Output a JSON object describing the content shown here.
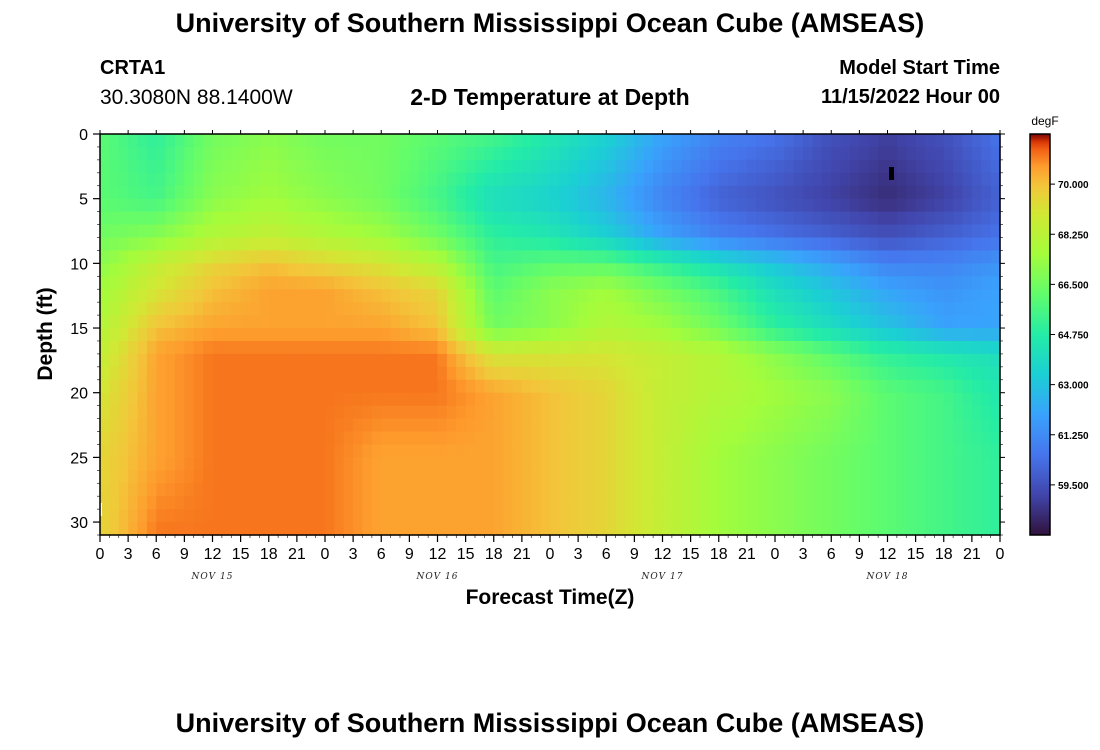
{
  "header": {
    "title": "University of Southern Mississippi Ocean Cube (AMSEAS)",
    "station_id": "CRTA1",
    "coordinates": "30.3080N  88.1400W",
    "subtitle": "2-D Temperature at Depth",
    "model_start_label": "Model Start Time",
    "model_start_time": "11/15/2022 Hour 00"
  },
  "footer": {
    "title": "University of Southern Mississippi Ocean Cube (AMSEAS)"
  },
  "chart_data": {
    "type": "heatmap",
    "title": "2-D Temperature at Depth",
    "xlabel": "Forecast Time(Z)",
    "ylabel": "Depth (ft)",
    "x_hours_range": [
      0,
      96
    ],
    "x_tick_labels": [
      "0",
      "3",
      "6",
      "9",
      "12",
      "15",
      "18",
      "21",
      "0",
      "3",
      "6",
      "9",
      "12",
      "15",
      "18",
      "21",
      "0",
      "3",
      "6",
      "9",
      "12",
      "15",
      "18",
      "21",
      "0",
      "3",
      "6",
      "9",
      "12",
      "15",
      "18",
      "21",
      "0"
    ],
    "day_labels": [
      "NOV 15",
      "NOV 16",
      "NOV 17",
      "NOV 18"
    ],
    "y_range": [
      0,
      31
    ],
    "y_ticks": [
      0,
      5,
      10,
      15,
      20,
      25,
      30
    ],
    "y_reversed": true,
    "colorbar": {
      "unit": "degF",
      "range": [
        57.75,
        71.75
      ],
      "tick_values": [
        70.0,
        68.25,
        66.5,
        64.75,
        63.0,
        61.25,
        59.5
      ],
      "tick_labels": [
        "70.000",
        "68.250",
        "66.500",
        "64.750",
        "63.000",
        "61.250",
        "59.500"
      ]
    },
    "layers": {
      "depth_ft": [
        0,
        5,
        8,
        10,
        12,
        15,
        17,
        20,
        25,
        31
      ],
      "hours": [
        0,
        6,
        12,
        18,
        24,
        30,
        36,
        42,
        48,
        54,
        60,
        66,
        72,
        78,
        84,
        90,
        96
      ],
      "temperature_degF": [
        [
          66.0,
          65.0,
          66.5,
          67.0,
          66.5,
          66.5,
          66.0,
          65.5,
          64.5,
          63.5,
          62.0,
          61.0,
          60.5,
          59.5,
          59.0,
          59.5,
          60.5
        ],
        [
          66.0,
          65.5,
          67.0,
          67.5,
          67.0,
          66.5,
          65.5,
          64.0,
          63.5,
          62.5,
          61.0,
          60.0,
          59.5,
          59.0,
          58.5,
          59.0,
          60.0
        ],
        [
          66.5,
          67.0,
          68.0,
          68.5,
          68.0,
          67.5,
          66.5,
          65.0,
          64.5,
          63.5,
          62.0,
          61.0,
          60.5,
          60.0,
          59.5,
          60.0,
          60.5
        ],
        [
          67.0,
          68.5,
          69.5,
          70.0,
          69.5,
          69.0,
          68.0,
          65.5,
          66.0,
          66.0,
          65.0,
          64.0,
          63.0,
          62.0,
          61.0,
          61.0,
          61.5
        ],
        [
          67.5,
          69.0,
          70.0,
          70.5,
          70.5,
          70.0,
          69.5,
          66.0,
          67.0,
          67.5,
          66.5,
          65.5,
          64.0,
          63.0,
          62.0,
          61.5,
          62.0
        ],
        [
          68.0,
          70.0,
          70.5,
          70.5,
          70.5,
          70.5,
          70.0,
          66.5,
          67.0,
          68.0,
          67.5,
          66.5,
          65.0,
          64.0,
          63.0,
          62.0,
          62.0
        ],
        [
          68.5,
          70.5,
          71.0,
          71.0,
          71.0,
          71.0,
          71.0,
          69.0,
          69.0,
          69.0,
          68.5,
          68.0,
          67.0,
          66.0,
          65.0,
          64.5,
          64.0
        ],
        [
          69.0,
          70.5,
          71.0,
          71.0,
          71.0,
          71.0,
          71.0,
          70.5,
          70.0,
          69.5,
          68.5,
          68.0,
          67.5,
          67.0,
          66.0,
          65.5,
          64.5
        ],
        [
          69.5,
          70.5,
          71.0,
          71.0,
          71.0,
          70.5,
          70.5,
          70.5,
          70.0,
          69.5,
          68.5,
          67.5,
          67.0,
          66.5,
          66.0,
          65.5,
          65.0
        ],
        [
          69.5,
          71.0,
          71.0,
          71.0,
          71.0,
          70.5,
          70.5,
          70.5,
          70.0,
          69.5,
          68.5,
          67.5,
          67.0,
          66.5,
          66.0,
          65.5,
          65.0
        ]
      ]
    }
  }
}
